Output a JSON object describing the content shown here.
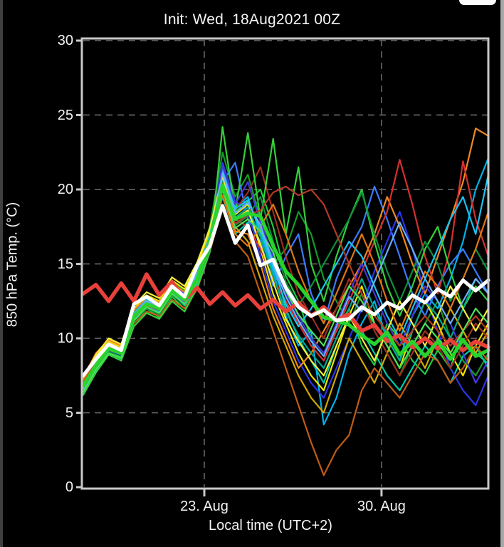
{
  "window": {
    "top_right_cropped_button": {
      "visible": true,
      "color": "#fbfbfb"
    }
  },
  "chart_data": {
    "type": "line",
    "title": "Init: Wed, 18Aug2021 00Z",
    "xlabel": "Local time (UTC+2)",
    "ylabel": "850 hPa Temp. (°C)",
    "x_unit": "days since init (18 Aug 2021, shown in local time UTC+2)",
    "x_start": 0,
    "x_step": 0.5,
    "xlim": [
      0,
      16
    ],
    "ylim": [
      0,
      30
    ],
    "grid": "dashed",
    "legend": "none",
    "background_color": "#000000",
    "frame_color": "#c8c8c8",
    "grid_color": "#5f5f5f",
    "text_color": "#f2f2f2",
    "yticks": [
      0,
      5,
      10,
      15,
      20,
      25,
      30
    ],
    "xticks": [
      {
        "day": 4.78,
        "label": "23. Aug"
      },
      {
        "day": 11.78,
        "label": "30. Aug"
      }
    ],
    "series": [
      {
        "name": "ens-member-01",
        "role": "member",
        "color": "#22c93e",
        "width": 2.2,
        "values": [
          6.3,
          7.9,
          9.0,
          8.6,
          11.0,
          12.0,
          11.4,
          12.8,
          12.0,
          13.6,
          16.0,
          21.0,
          18.5,
          19.2,
          20.0,
          17.5,
          14.2,
          12.5,
          10.0,
          9.0,
          10.5,
          12.0,
          9.5,
          8.2,
          11.0,
          10.0,
          8.5,
          7.6,
          9.2,
          8.0,
          10.5,
          9.0,
          8.3
        ]
      },
      {
        "name": "ens-member-02",
        "role": "member",
        "color": "#149b28",
        "width": 2.2,
        "values": [
          6.6,
          8.0,
          9.5,
          9.2,
          11.8,
          12.8,
          12.4,
          13.8,
          13.2,
          14.8,
          17.5,
          22.5,
          19.5,
          21.0,
          18.0,
          15.0,
          16.0,
          18.5,
          17.0,
          14.0,
          12.5,
          11.0,
          13.0,
          10.5,
          9.0,
          7.5,
          9.5,
          11.0,
          12.5,
          10.0,
          8.5,
          7.5,
          9.0
        ]
      },
      {
        "name": "ens-member-03",
        "role": "member",
        "color": "#00c9a6",
        "width": 2.2,
        "values": [
          6.5,
          8.1,
          9.2,
          8.8,
          11.2,
          12.1,
          11.8,
          13.0,
          12.2,
          13.7,
          16.2,
          19.5,
          17.0,
          17.8,
          17.5,
          15.2,
          12.0,
          10.0,
          8.5,
          7.0,
          9.5,
          11.5,
          10.5,
          9.0,
          7.5,
          6.5,
          8.0,
          9.5,
          8.5,
          7.0,
          8.8,
          9.5,
          8.0
        ]
      },
      {
        "name": "ens-member-04",
        "role": "member",
        "color": "#00b2e8",
        "width": 2.2,
        "values": [
          6.7,
          8.3,
          9.4,
          9.1,
          11.6,
          12.5,
          12.1,
          13.4,
          12.8,
          14.2,
          16.8,
          21.5,
          18.8,
          19.5,
          17.0,
          14.5,
          11.5,
          9.5,
          10.5,
          4.2,
          6.0,
          9.0,
          11.0,
          12.5,
          10.0,
          8.5,
          11.5,
          13.0,
          12.0,
          14.0,
          16.5,
          20.0,
          22.1
        ]
      },
      {
        "name": "ens-member-05",
        "role": "member",
        "color": "#3a7bff",
        "width": 2.2,
        "values": [
          6.4,
          7.8,
          9.1,
          8.7,
          11.3,
          12.2,
          11.7,
          13.1,
          12.4,
          13.9,
          16.3,
          20.5,
          21.8,
          18.0,
          16.5,
          13.5,
          15.5,
          17.0,
          13.0,
          11.0,
          14.0,
          16.0,
          17.5,
          20.2,
          18.0,
          15.5,
          13.0,
          11.5,
          13.5,
          15.0,
          16.0,
          14.5,
          13.0
        ]
      },
      {
        "name": "ens-member-06",
        "role": "member",
        "color": "#2b36e6",
        "width": 2.2,
        "values": [
          6.6,
          8.4,
          9.6,
          9.3,
          11.9,
          12.6,
          12.3,
          13.6,
          13.0,
          14.4,
          17.0,
          21.8,
          19.2,
          18.5,
          15.5,
          12.5,
          10.5,
          8.5,
          7.0,
          6.0,
          8.0,
          10.0,
          12.0,
          14.5,
          16.5,
          18.5,
          16.0,
          13.0,
          10.5,
          8.0,
          6.5,
          5.5,
          7.5
        ]
      },
      {
        "name": "ens-member-07",
        "role": "member",
        "color": "#ece400",
        "width": 2.2,
        "values": [
          7.2,
          8.8,
          9.8,
          9.4,
          12.0,
          12.9,
          12.5,
          13.9,
          13.3,
          14.9,
          17.2,
          21.2,
          18.3,
          19.0,
          16.0,
          13.0,
          11.0,
          9.0,
          7.5,
          6.5,
          9.0,
          11.5,
          13.5,
          11.0,
          9.5,
          8.0,
          10.5,
          12.5,
          11.0,
          9.0,
          7.5,
          9.5,
          11.0
        ]
      },
      {
        "name": "ens-member-08",
        "role": "member",
        "color": "#d3a800",
        "width": 2.2,
        "values": [
          7.0,
          8.6,
          9.7,
          9.3,
          11.7,
          12.4,
          12.2,
          13.3,
          12.7,
          14.1,
          16.6,
          20.8,
          17.5,
          16.5,
          14.0,
          11.5,
          9.5,
          7.5,
          6.0,
          5.0,
          7.5,
          10.0,
          8.5,
          7.0,
          9.0,
          11.0,
          9.5,
          8.0,
          10.0,
          12.0,
          10.5,
          9.0,
          10.5
        ]
      },
      {
        "name": "ens-member-09",
        "role": "member",
        "color": "#f08822",
        "width": 2.2,
        "values": [
          7.4,
          9.0,
          9.9,
          9.5,
          11.9,
          12.7,
          12.4,
          13.7,
          13.1,
          14.6,
          16.9,
          20.0,
          17.2,
          17.0,
          15.0,
          12.0,
          10.0,
          8.0,
          9.0,
          10.5,
          12.0,
          13.5,
          15.0,
          17.0,
          19.5,
          17.5,
          15.0,
          13.0,
          15.5,
          18.0,
          20.5,
          24.1,
          23.6
        ]
      },
      {
        "name": "ens-member-10",
        "role": "member",
        "color": "#bf5c16",
        "width": 2.2,
        "values": [
          7.1,
          8.5,
          9.2,
          8.8,
          11.0,
          11.8,
          11.5,
          12.6,
          12.0,
          13.3,
          15.8,
          19.0,
          16.5,
          15.5,
          13.0,
          10.5,
          8.0,
          5.5,
          3.0,
          0.8,
          2.5,
          3.5,
          6.5,
          8.0,
          7.0,
          6.0,
          7.5,
          9.0,
          8.5,
          7.0,
          8.0,
          9.5,
          8.5
        ]
      },
      {
        "name": "ens-member-11",
        "role": "member",
        "color": "#d63031",
        "width": 2.2,
        "values": [
          6.9,
          8.2,
          9.3,
          9.0,
          11.4,
          12.2,
          11.9,
          13.2,
          12.5,
          14.0,
          16.4,
          20.6,
          18.0,
          17.5,
          16.0,
          14.0,
          12.5,
          11.0,
          9.5,
          8.5,
          10.5,
          12.5,
          14.5,
          16.5,
          18.5,
          22.0,
          19.0,
          15.5,
          13.0,
          16.0,
          21.9,
          18.0,
          15.5
        ]
      },
      {
        "name": "ens-member-12",
        "role": "member",
        "color": "#9c2f1f",
        "width": 2.2,
        "values": [
          6.8,
          8.1,
          9.4,
          9.1,
          11.6,
          12.4,
          12.0,
          13.4,
          12.8,
          14.3,
          16.7,
          21.0,
          18.6,
          19.8,
          21.5,
          18.5,
          15.5,
          13.0,
          11.5,
          10.0,
          12.0,
          14.0,
          12.5,
          10.5,
          9.0,
          7.5,
          9.0,
          10.5,
          9.5,
          8.0,
          9.5,
          11.0,
          10.0
        ]
      },
      {
        "name": "ens-member-13",
        "role": "member",
        "color": "#35d03b",
        "width": 2.2,
        "values": [
          6.2,
          7.7,
          8.9,
          8.5,
          10.8,
          11.7,
          11.3,
          12.5,
          11.8,
          13.4,
          15.8,
          24.2,
          18.5,
          23.8,
          18.0,
          23.4,
          17.0,
          21.5,
          15.0,
          12.5,
          15.5,
          18.0,
          20.0,
          16.5,
          13.5,
          11.5,
          13.5,
          16.0,
          17.5,
          14.5,
          12.0,
          13.5,
          12.5
        ]
      },
      {
        "name": "ens-member-14",
        "role": "member",
        "color": "#0e8f3a",
        "width": 2.2,
        "values": [
          6.5,
          8.0,
          9.1,
          8.8,
          11.1,
          12.0,
          11.6,
          12.9,
          12.3,
          13.8,
          16.1,
          20.2,
          17.6,
          18.2,
          19.5,
          16.5,
          13.8,
          12.2,
          13.5,
          15.0,
          16.5,
          18.0,
          19.8,
          17.0,
          14.5,
          12.5,
          14.5,
          16.5,
          15.0,
          12.5,
          14.0,
          16.0,
          14.5
        ]
      },
      {
        "name": "ens-member-15",
        "role": "member",
        "color": "#00a98f",
        "width": 2.2,
        "values": [
          6.6,
          8.2,
          9.3,
          9.0,
          11.4,
          12.3,
          11.9,
          13.2,
          12.6,
          14.1,
          16.5,
          20.7,
          18.1,
          18.8,
          16.8,
          14.2,
          11.8,
          10.2,
          9.0,
          8.0,
          10.0,
          12.0,
          14.0,
          12.0,
          10.0,
          8.5,
          10.5,
          12.5,
          11.5,
          10.0,
          12.0,
          14.0,
          13.0
        ]
      },
      {
        "name": "ens-member-16",
        "role": "member",
        "color": "#19c3f0",
        "width": 2.2,
        "values": [
          6.7,
          8.3,
          9.5,
          9.2,
          11.7,
          12.6,
          12.2,
          13.5,
          12.9,
          14.4,
          16.9,
          21.3,
          18.7,
          19.3,
          17.3,
          14.8,
          12.3,
          10.8,
          12.0,
          13.5,
          15.0,
          16.5,
          15.5,
          13.5,
          11.5,
          10.0,
          12.0,
          14.0,
          16.0,
          18.0,
          19.5,
          17.0,
          21.0
        ]
      },
      {
        "name": "ens-member-17",
        "role": "member",
        "color": "#4338d8",
        "width": 2.2,
        "values": [
          6.5,
          8.1,
          9.2,
          8.9,
          11.5,
          12.4,
          12.0,
          13.3,
          12.7,
          14.2,
          16.6,
          21.6,
          19.0,
          20.5,
          17.8,
          15.5,
          13.0,
          11.5,
          10.0,
          9.0,
          11.0,
          13.0,
          15.0,
          13.0,
          11.0,
          9.5,
          11.5,
          13.5,
          12.5,
          11.0,
          9.0,
          7.0,
          8.5
        ]
      },
      {
        "name": "ens-member-18",
        "role": "member",
        "color": "#f5ee3c",
        "width": 2.2,
        "values": [
          7.3,
          8.9,
          10.0,
          9.6,
          12.2,
          13.1,
          12.7,
          14.1,
          13.5,
          15.1,
          17.4,
          20.9,
          18.0,
          18.6,
          16.3,
          13.8,
          11.3,
          9.8,
          8.5,
          7.5,
          9.5,
          11.5,
          10.0,
          8.5,
          10.5,
          12.5,
          11.0,
          9.5,
          11.5,
          13.5,
          12.0,
          10.5,
          12.0
        ]
      },
      {
        "name": "ens-member-19",
        "role": "member",
        "color": "#e07612",
        "width": 2.2,
        "values": [
          7.2,
          8.7,
          9.6,
          9.2,
          11.6,
          12.5,
          12.1,
          13.4,
          12.8,
          14.3,
          16.7,
          19.6,
          17.0,
          16.2,
          17.5,
          19.0,
          17.0,
          14.5,
          12.5,
          11.0,
          13.0,
          15.0,
          17.0,
          15.0,
          12.5,
          10.5,
          12.5,
          14.5,
          13.5,
          12.0,
          14.0,
          16.0,
          18.5
        ]
      },
      {
        "name": "ens-member-20",
        "role": "member",
        "color": "#b33a25",
        "width": 2.2,
        "values": [
          6.9,
          8.4,
          9.4,
          9.1,
          11.5,
          12.3,
          12.0,
          13.3,
          12.6,
          14.1,
          16.4,
          20.4,
          17.7,
          18.3,
          18.6,
          19.8,
          20.2,
          19.6,
          20.0,
          19.0,
          17.0,
          15.0,
          13.0,
          11.5,
          10.5,
          9.5,
          10.5,
          11.5,
          10.5,
          9.5,
          10.5,
          11.5,
          10.5
        ]
      },
      {
        "name": "ens-member-21",
        "role": "member",
        "color": "#4ce05a",
        "width": 2.2,
        "values": [
          6.4,
          7.9,
          9.0,
          8.7,
          11.2,
          12.1,
          11.7,
          13.0,
          12.3,
          13.8,
          16.2,
          20.0,
          17.4,
          18.0,
          17.2,
          15.8,
          13.2,
          11.6,
          10.5,
          9.5,
          11.5,
          13.5,
          12.5,
          11.0,
          9.5,
          8.0,
          9.5,
          11.0,
          10.0,
          9.0,
          10.5,
          12.0,
          11.0
        ]
      },
      {
        "name": "ens-member-22",
        "role": "member",
        "color": "#6ab0f5",
        "width": 2.2,
        "values": [
          6.6,
          8.2,
          9.4,
          9.0,
          11.6,
          12.5,
          12.1,
          13.4,
          12.8,
          14.3,
          16.6,
          21.1,
          18.4,
          19.1,
          17.6,
          15.0,
          12.8,
          11.2,
          9.8,
          8.8,
          10.8,
          12.8,
          11.8,
          13.8,
          15.8,
          17.8,
          16.0,
          14.0,
          12.5,
          11.0,
          12.5,
          14.0,
          13.0
        ]
      },
      {
        "name": "climate-mean",
        "role": "thick",
        "color": "#e8403a",
        "width": 5.5,
        "values": [
          13.0,
          13.6,
          12.5,
          13.7,
          12.5,
          14.3,
          12.9,
          13.8,
          12.6,
          13.4,
          12.3,
          13.1,
          12.2,
          12.9,
          12.0,
          12.6,
          11.8,
          12.4,
          11.5,
          12.1,
          11.2,
          11.6,
          10.5,
          10.9,
          9.8,
          10.2,
          9.4,
          10.0,
          9.3,
          9.9,
          9.2,
          9.8,
          9.4
        ]
      },
      {
        "name": "ensemble-mean",
        "role": "thick",
        "color": "#28d42c",
        "width": 5,
        "values": [
          6.8,
          8.2,
          9.3,
          9.0,
          11.5,
          12.3,
          12.0,
          13.2,
          12.6,
          14.0,
          16.5,
          20.3,
          18.0,
          18.4,
          18.2,
          16.2,
          14.5,
          13.6,
          12.5,
          11.4,
          11.2,
          10.9,
          10.2,
          9.6,
          10.4,
          8.9,
          9.8,
          8.8,
          9.8,
          8.6,
          9.9,
          8.8,
          9.2
        ]
      },
      {
        "name": "main-run",
        "role": "thick",
        "color": "#ffffff",
        "width": 5,
        "values": [
          7.5,
          8.6,
          9.6,
          9.2,
          12.3,
          12.8,
          12.2,
          13.5,
          12.8,
          14.9,
          16.2,
          18.9,
          16.4,
          17.6,
          14.9,
          15.3,
          13.4,
          12.1,
          11.5,
          11.9,
          11.2,
          11.3,
          12.1,
          11.6,
          12.4,
          12.0,
          12.9,
          12.4,
          13.3,
          12.8,
          13.9,
          13.2,
          13.9
        ]
      }
    ]
  }
}
